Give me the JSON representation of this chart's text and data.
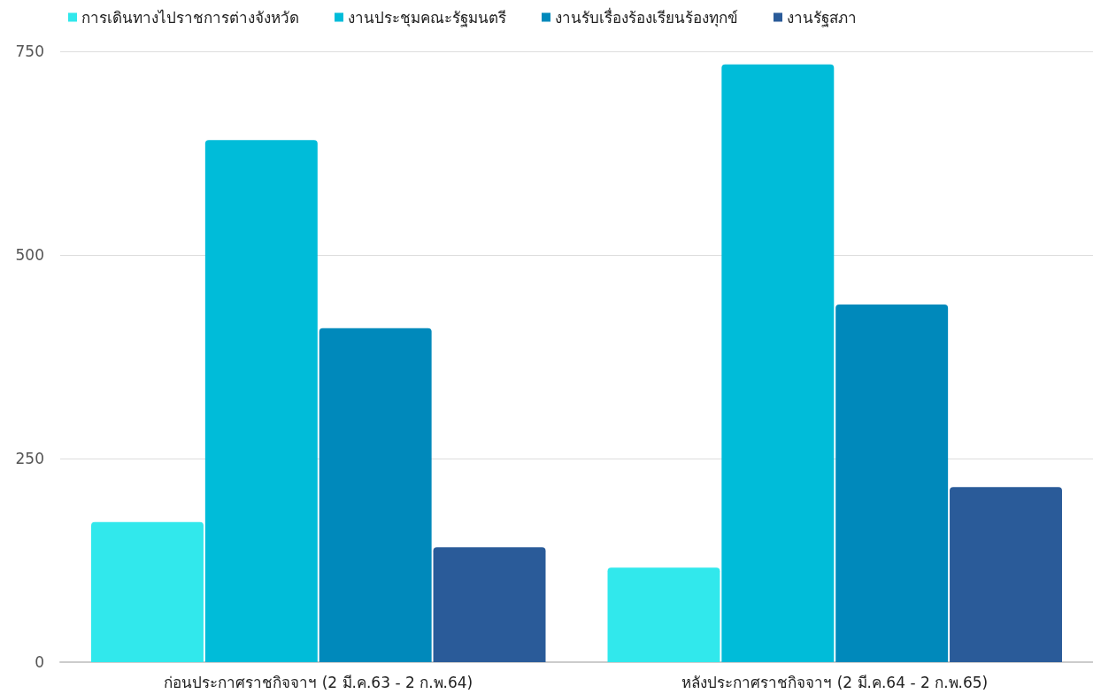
{
  "chart_data": {
    "type": "bar",
    "categories": [
      "ก่อนประกาศราชกิจจาฯ (2 มี.ค.63 - 2 ก.พ.64)",
      "หลังประกาศราชกิจจาฯ (2 มี.ค.64 - 2 ก.พ.65)"
    ],
    "series": [
      {
        "name": "การเดินทางไปราชการต่างจังหวัด",
        "color": "#31e8ec",
        "values": [
          172,
          116
        ]
      },
      {
        "name": "งานประชุมคณะรัฐมนตรี",
        "color": "#00bcd9",
        "values": [
          641,
          734
        ]
      },
      {
        "name": "งานรับเรื่องร้องเรียนร้องทุกข์",
        "color": "#0089bb",
        "values": [
          410,
          439
        ]
      },
      {
        "name": "งานรัฐสภา",
        "color": "#2a5b99",
        "values": [
          141,
          215
        ]
      }
    ],
    "ylim": [
      0,
      750
    ],
    "yticks": [
      0,
      250,
      500,
      750
    ],
    "grid": "y",
    "legend": "top left"
  }
}
